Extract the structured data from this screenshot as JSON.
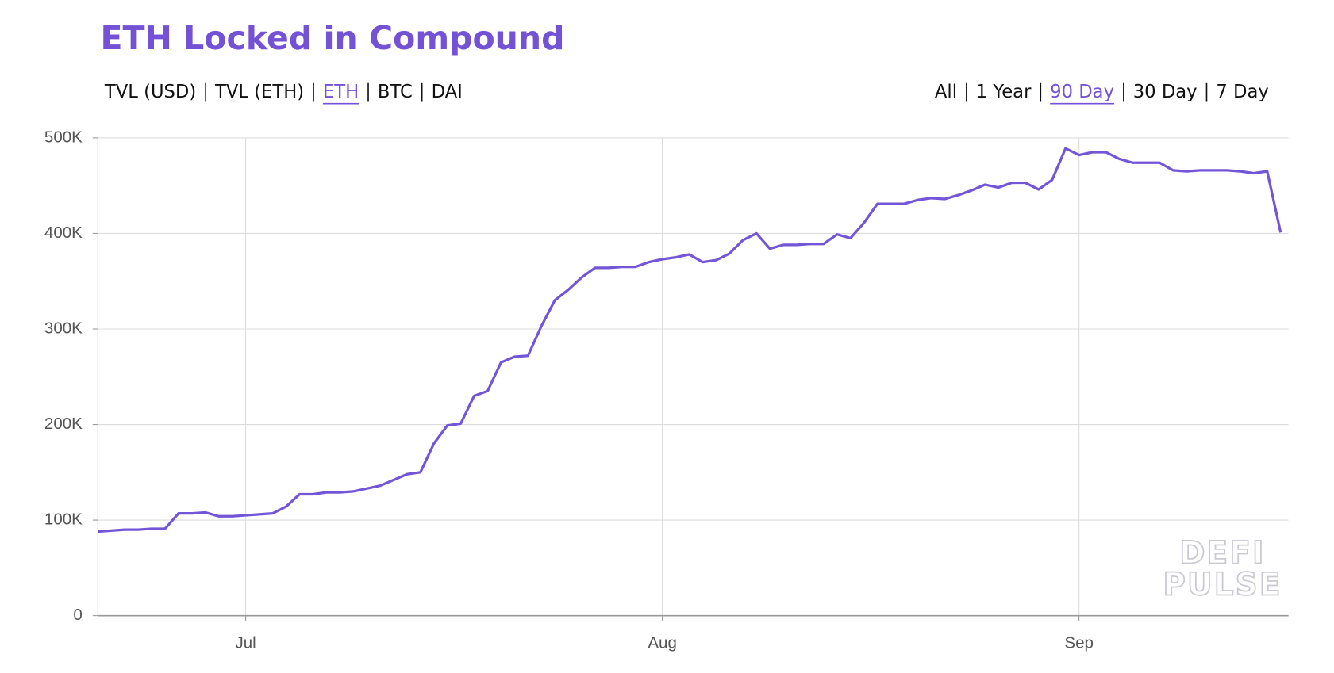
{
  "chart_data": {
    "type": "line",
    "title": "ETH Locked in Compound",
    "categories": [
      null,
      null,
      null,
      null,
      null,
      null,
      null,
      null,
      null,
      null,
      null,
      "Jul",
      null,
      null,
      null,
      null,
      null,
      null,
      null,
      null,
      null,
      null,
      null,
      null,
      null,
      null,
      null,
      null,
      null,
      null,
      null,
      null,
      null,
      null,
      null,
      null,
      null,
      null,
      null,
      null,
      null,
      null,
      "Aug",
      null,
      null,
      null,
      null,
      null,
      null,
      null,
      null,
      null,
      null,
      null,
      null,
      null,
      null,
      null,
      null,
      null,
      null,
      null,
      null,
      null,
      null,
      null,
      null,
      null,
      null,
      null,
      null,
      null,
      null,
      "Sep",
      null,
      null,
      null,
      null,
      null,
      null,
      null,
      null,
      null,
      null,
      null,
      null,
      null,
      null,
      null
    ],
    "series": [
      {
        "name": "ETH",
        "color": "#7356d8",
        "values": [
          88000,
          89000,
          90000,
          90000,
          91000,
          91000,
          107000,
          107000,
          108000,
          104000,
          104000,
          105000,
          106000,
          107000,
          114000,
          127000,
          127000,
          129000,
          129000,
          130000,
          133000,
          136000,
          142000,
          148000,
          150000,
          180000,
          199000,
          201000,
          230000,
          235000,
          265000,
          271000,
          272000,
          303000,
          330000,
          341000,
          354000,
          364000,
          364000,
          365000,
          365000,
          370000,
          373000,
          375000,
          378000,
          370000,
          372000,
          379000,
          393000,
          400000,
          384000,
          388000,
          388000,
          389000,
          389000,
          399000,
          395000,
          411000,
          431000,
          431000,
          431000,
          435000,
          437000,
          436000,
          440000,
          445000,
          451000,
          448000,
          453000,
          453000,
          446000,
          456000,
          489000,
          482000,
          485000,
          485000,
          478000,
          474000,
          474000,
          474000,
          466000,
          465000,
          466000,
          466000,
          466000,
          465000,
          463000,
          465000,
          401000
        ]
      }
    ],
    "ylim": [
      0,
      500000
    ],
    "yticks": [
      0,
      {
        "value": 100000,
        "label": "100K"
      },
      {
        "value": 200000,
        "label": "200K"
      },
      {
        "value": 300000,
        "label": "300K"
      },
      {
        "value": 400000,
        "label": "400K"
      },
      {
        "value": 500000,
        "label": "500K"
      }
    ],
    "grid": true,
    "watermark": [
      "DEFI",
      "PULSE"
    ]
  },
  "controls": {
    "metrics": {
      "options": [
        "TVL (USD)",
        "TVL (ETH)",
        "ETH",
        "BTC",
        "DAI"
      ],
      "selected": 2
    },
    "ranges": {
      "options": [
        "All",
        "1 Year",
        "90 Day",
        "30 Day",
        "7 Day"
      ],
      "selected": 2
    }
  }
}
